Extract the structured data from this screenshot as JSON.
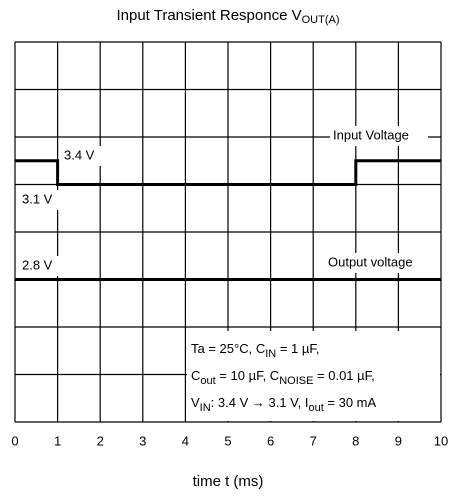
{
  "chart_data": {
    "type": "line",
    "title": [
      "Input Transient Responce V",
      "OUT(A)"
    ],
    "xlabel": "time   t   (ms)",
    "xlim": [
      0,
      10
    ],
    "xticks": [
      0,
      1,
      2,
      3,
      4,
      5,
      6,
      7,
      8,
      9,
      10
    ],
    "ylim": [
      0.1,
      4.9
    ],
    "y2lim": [
      2.2,
      3.8
    ],
    "grid": true,
    "series": [
      {
        "name": "Input Voltage",
        "color": "#000000",
        "x": [
          0,
          1,
          1,
          8,
          8,
          10
        ],
        "values": [
          3.4,
          3.4,
          3.1,
          3.1,
          3.4,
          3.4
        ]
      },
      {
        "name": "Output voltage",
        "color": "#000000",
        "axis": "y2",
        "x": [
          0,
          10
        ],
        "values": [
          2.8,
          2.8
        ]
      }
    ],
    "annotations": [
      "3.4 V",
      "3.1 V",
      "2.8 V"
    ],
    "conditions": [
      [
        "Ta = 25°C, C",
        "IN",
        " = 1 µF,"
      ],
      [
        "C",
        "out",
        " = 10 µF, C",
        "NOISE",
        " = 0.01 µF,"
      ],
      [
        "V",
        "IN",
        ": 3.4 V → 3.1 V, I",
        "out",
        " = 30 mA"
      ]
    ]
  }
}
